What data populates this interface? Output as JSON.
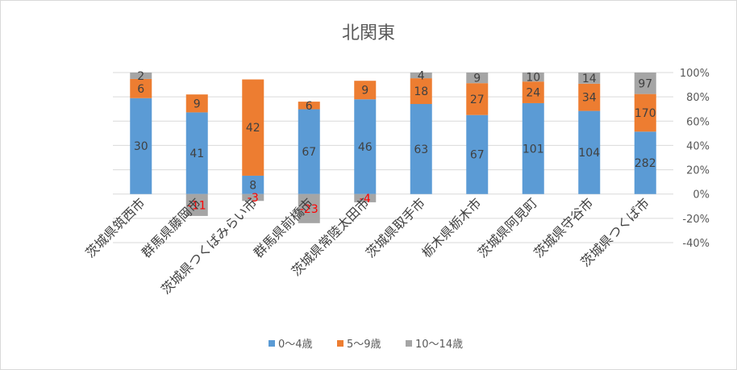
{
  "chart_data": {
    "type": "bar",
    "stacked": "percent",
    "title": "北関東",
    "categories": [
      "茨城県筑西市",
      "群馬県藤岡市",
      "茨城県つくばみらい市",
      "群馬県前橋市",
      "茨城県常陸太田市",
      "茨城県取手市",
      "栃木県栃木市",
      "茨城県阿見町",
      "茨城県守谷市",
      "茨城県つくば市"
    ],
    "series": [
      {
        "name": "0～4歳",
        "color": "#5b9bd5",
        "values": [
          30,
          41,
          8,
          67,
          46,
          63,
          67,
          101,
          104,
          282
        ]
      },
      {
        "name": "5～9歳",
        "color": "#ed7d31",
        "values": [
          6,
          9,
          42,
          6,
          9,
          18,
          27,
          24,
          34,
          170
        ]
      },
      {
        "name": "10～14歳",
        "color": "#a5a5a5",
        "values": [
          2,
          -11,
          -3,
          -23,
          -4,
          4,
          9,
          10,
          14,
          97
        ]
      }
    ],
    "y_axis": {
      "position": "right",
      "min": -40,
      "max": 100,
      "step": 20,
      "ticks": [
        "100%",
        "80%",
        "60%",
        "40%",
        "20%",
        "0%",
        "-20%",
        "-40%"
      ]
    },
    "grid": "horizontal",
    "legend": "bottom",
    "negative_label_color": "#ff0000"
  }
}
